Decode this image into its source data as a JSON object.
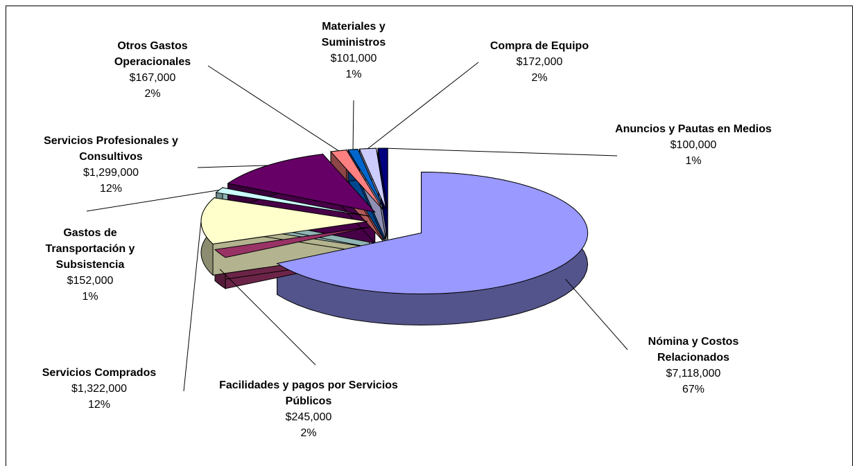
{
  "chart_data": {
    "type": "pie",
    "categories": [
      "Nómina y Costos Relacionados",
      "Facilidades y pagos por Servicios Públicos",
      "Servicios Comprados",
      "Gastos de Transportación y Subsistencia",
      "Servicios Profesionales y Consultivos",
      "Otros Gastos Operacionales",
      "Materiales y Suministros",
      "Compra de Equipo",
      "Anuncios y Pautas en Medios"
    ],
    "values": [
      7118000,
      245000,
      1322000,
      152000,
      1299000,
      167000,
      101000,
      172000,
      100000
    ],
    "value_labels": [
      "$7,118,000",
      "$245,000",
      "$1,322,000",
      "$152,000",
      "$1,299,000",
      "$167,000",
      "$101,000",
      "$172,000",
      "$100,000"
    ],
    "percents": [
      67,
      2,
      12,
      1,
      12,
      2,
      1,
      2,
      1
    ],
    "percent_labels": [
      "67%",
      "2%",
      "12%",
      "1%",
      "12%",
      "2%",
      "1%",
      "2%",
      "1%"
    ],
    "colors": [
      "#9999ff",
      "#993366",
      "#ffffcc",
      "#ccffff",
      "#660066",
      "#ff8080",
      "#0066cc",
      "#ccccff",
      "#000080"
    ]
  }
}
